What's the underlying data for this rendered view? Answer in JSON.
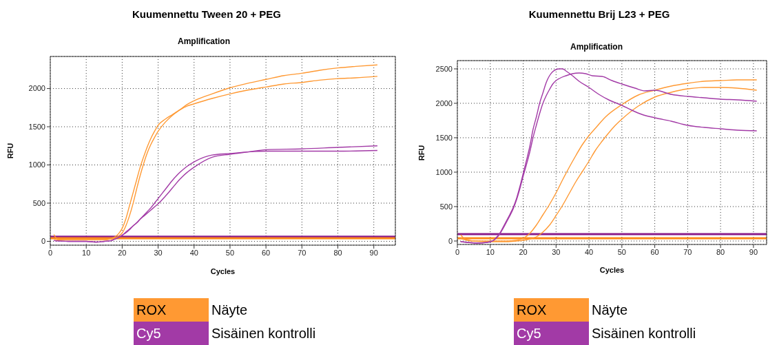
{
  "chart_data": [
    {
      "type": "line",
      "title": "Kuumennettu Tween 20 + PEG",
      "subtitle": "Amplification",
      "xlabel": "Cycles",
      "ylabel": "RFU",
      "xlim": [
        0,
        96
      ],
      "xticks": [
        0,
        10,
        20,
        30,
        40,
        50,
        60,
        70,
        80,
        90
      ],
      "ylim": [
        -50,
        2420
      ],
      "yticks": [
        0,
        500,
        1000,
        1500,
        2000
      ],
      "grid": true,
      "legend": "bottom",
      "line_style": "solid",
      "annotations": [
        "Näyte",
        "Sisäinen kontrolli"
      ],
      "ref_lines": [
        {
          "axis": "y",
          "value": 60,
          "color": "#8b1c8b"
        },
        {
          "axis": "y",
          "value": 40,
          "color": "#ff8c1a"
        }
      ],
      "series": [
        {
          "name": "ROX",
          "color": "#ff9933",
          "x": [
            1,
            2,
            5,
            10,
            15,
            17,
            18,
            19,
            20,
            21,
            22,
            23,
            24,
            25,
            26,
            27,
            28,
            29,
            30,
            32,
            34,
            36,
            38,
            40,
            45,
            50,
            55,
            60,
            65,
            70,
            75,
            80,
            85,
            91
          ],
          "values": [
            90,
            30,
            20,
            20,
            20,
            40,
            60,
            100,
            170,
            290,
            460,
            630,
            800,
            970,
            1110,
            1240,
            1350,
            1440,
            1520,
            1600,
            1660,
            1720,
            1770,
            1800,
            1870,
            1930,
            1980,
            2020,
            2060,
            2080,
            2110,
            2130,
            2140,
            2160
          ]
        },
        {
          "color": "#ff9933",
          "x": [
            1,
            2,
            5,
            10,
            15,
            17,
            18,
            19,
            20,
            21,
            22,
            23,
            24,
            25,
            26,
            27,
            28,
            29,
            30,
            32,
            34,
            36,
            38,
            40,
            45,
            50,
            55,
            60,
            65,
            70,
            75,
            80,
            85,
            91
          ],
          "values": [
            30,
            20,
            20,
            20,
            20,
            30,
            40,
            70,
            110,
            200,
            330,
            490,
            680,
            860,
            1020,
            1160,
            1270,
            1360,
            1440,
            1560,
            1650,
            1720,
            1790,
            1840,
            1930,
            2010,
            2070,
            2120,
            2170,
            2200,
            2240,
            2270,
            2290,
            2310
          ]
        },
        {
          "name": "Cy5",
          "color": "#a23aa6",
          "x": [
            1,
            5,
            10,
            13,
            15,
            17,
            18,
            19,
            20,
            21,
            22,
            23,
            24,
            25,
            26,
            27,
            28,
            29,
            30,
            32,
            34,
            36,
            38,
            40,
            45,
            50,
            55,
            60,
            70,
            80,
            91
          ],
          "values": [
            10,
            0,
            0,
            -10,
            0,
            10,
            30,
            50,
            80,
            120,
            160,
            200,
            240,
            290,
            340,
            390,
            440,
            500,
            560,
            680,
            800,
            900,
            980,
            1040,
            1130,
            1150,
            1170,
            1180,
            1180,
            1180,
            1190
          ]
        },
        {
          "color": "#a23aa6",
          "x": [
            1,
            5,
            10,
            13,
            15,
            17,
            18,
            19,
            20,
            21,
            22,
            23,
            24,
            25,
            26,
            27,
            28,
            29,
            30,
            32,
            34,
            36,
            38,
            40,
            45,
            50,
            55,
            60,
            70,
            80,
            91
          ],
          "values": [
            10,
            0,
            0,
            -10,
            0,
            10,
            30,
            50,
            80,
            110,
            150,
            200,
            240,
            290,
            330,
            370,
            410,
            450,
            490,
            590,
            700,
            810,
            900,
            970,
            1100,
            1140,
            1170,
            1200,
            1210,
            1230,
            1250
          ]
        }
      ]
    },
    {
      "type": "line",
      "title": "Kuumennettu Brij L23 + PEG",
      "subtitle": "Amplification",
      "xlabel": "Cycles",
      "ylabel": "RFU",
      "xlim": [
        0,
        94
      ],
      "xticks": [
        0,
        10,
        20,
        30,
        40,
        50,
        60,
        70,
        80,
        90
      ],
      "ylim": [
        -50,
        2620
      ],
      "yticks": [
        0,
        500,
        1000,
        1500,
        2000,
        2500
      ],
      "grid": true,
      "legend": "bottom",
      "line_style": "solid",
      "annotations": [
        "Näyte",
        "Sisäinen kontrolli"
      ],
      "ref_lines": [
        {
          "axis": "y",
          "value": 100,
          "color": "#8b1c8b"
        },
        {
          "axis": "y",
          "value": 40,
          "color": "#ff8c1a"
        }
      ],
      "series": [
        {
          "name": "ROX",
          "color": "#ff9933",
          "x": [
            1,
            2,
            3,
            5,
            10,
            15,
            18,
            20,
            22,
            24,
            26,
            28,
            30,
            32,
            34,
            36,
            38,
            40,
            42,
            45,
            50,
            55,
            60,
            65,
            70,
            75,
            80,
            85,
            91
          ],
          "values": [
            90,
            40,
            20,
            0,
            0,
            0,
            10,
            40,
            110,
            230,
            380,
            530,
            700,
            890,
            1070,
            1240,
            1400,
            1530,
            1640,
            1800,
            1980,
            2120,
            2190,
            2250,
            2290,
            2320,
            2330,
            2340,
            2340
          ]
        },
        {
          "color": "#ff9933",
          "x": [
            1,
            3,
            5,
            10,
            15,
            18,
            20,
            22,
            24,
            26,
            28,
            30,
            32,
            34,
            36,
            38,
            40,
            42,
            44,
            46,
            48,
            50,
            55,
            60,
            65,
            70,
            75,
            80,
            85,
            91
          ],
          "values": [
            40,
            10,
            0,
            -10,
            -10,
            0,
            10,
            30,
            60,
            130,
            230,
            370,
            520,
            690,
            860,
            1010,
            1160,
            1320,
            1450,
            1570,
            1680,
            1770,
            1960,
            2090,
            2160,
            2210,
            2230,
            2230,
            2220,
            2190
          ]
        },
        {
          "name": "Cy5",
          "color": "#a23aa6",
          "x": [
            1,
            3,
            6,
            9,
            10,
            11,
            12,
            13,
            14,
            15,
            16,
            17,
            18,
            19,
            20,
            21,
            22,
            23,
            24,
            25,
            26,
            27,
            28,
            29,
            30,
            31,
            32,
            33,
            35,
            37,
            40,
            43,
            46,
            50,
            53,
            56,
            60,
            65,
            70,
            75,
            80,
            85,
            91
          ],
          "values": [
            -10,
            -20,
            -30,
            -20,
            -10,
            10,
            60,
            120,
            210,
            300,
            390,
            490,
            620,
            790,
            980,
            1170,
            1370,
            1620,
            1800,
            2000,
            2150,
            2300,
            2400,
            2460,
            2490,
            2500,
            2500,
            2470,
            2400,
            2320,
            2230,
            2130,
            2050,
            1970,
            1900,
            1840,
            1790,
            1740,
            1680,
            1650,
            1630,
            1610,
            1600
          ]
        },
        {
          "color": "#a23aa6",
          "x": [
            1,
            3,
            6,
            9,
            10,
            11,
            12,
            13,
            14,
            15,
            16,
            17,
            18,
            19,
            20,
            21,
            22,
            23,
            24,
            25,
            26,
            27,
            28,
            29,
            30,
            31,
            33,
            35,
            37,
            39,
            41,
            44,
            47,
            50,
            54,
            57,
            60,
            65,
            70,
            75,
            80,
            85,
            91
          ],
          "values": [
            -10,
            -20,
            -30,
            -20,
            -10,
            10,
            50,
            110,
            190,
            280,
            370,
            470,
            600,
            760,
            940,
            1110,
            1290,
            1500,
            1680,
            1850,
            2000,
            2110,
            2200,
            2280,
            2330,
            2360,
            2400,
            2430,
            2440,
            2430,
            2400,
            2390,
            2330,
            2280,
            2220,
            2180,
            2190,
            2130,
            2100,
            2080,
            2060,
            2050,
            2030
          ]
        }
      ]
    }
  ]
}
